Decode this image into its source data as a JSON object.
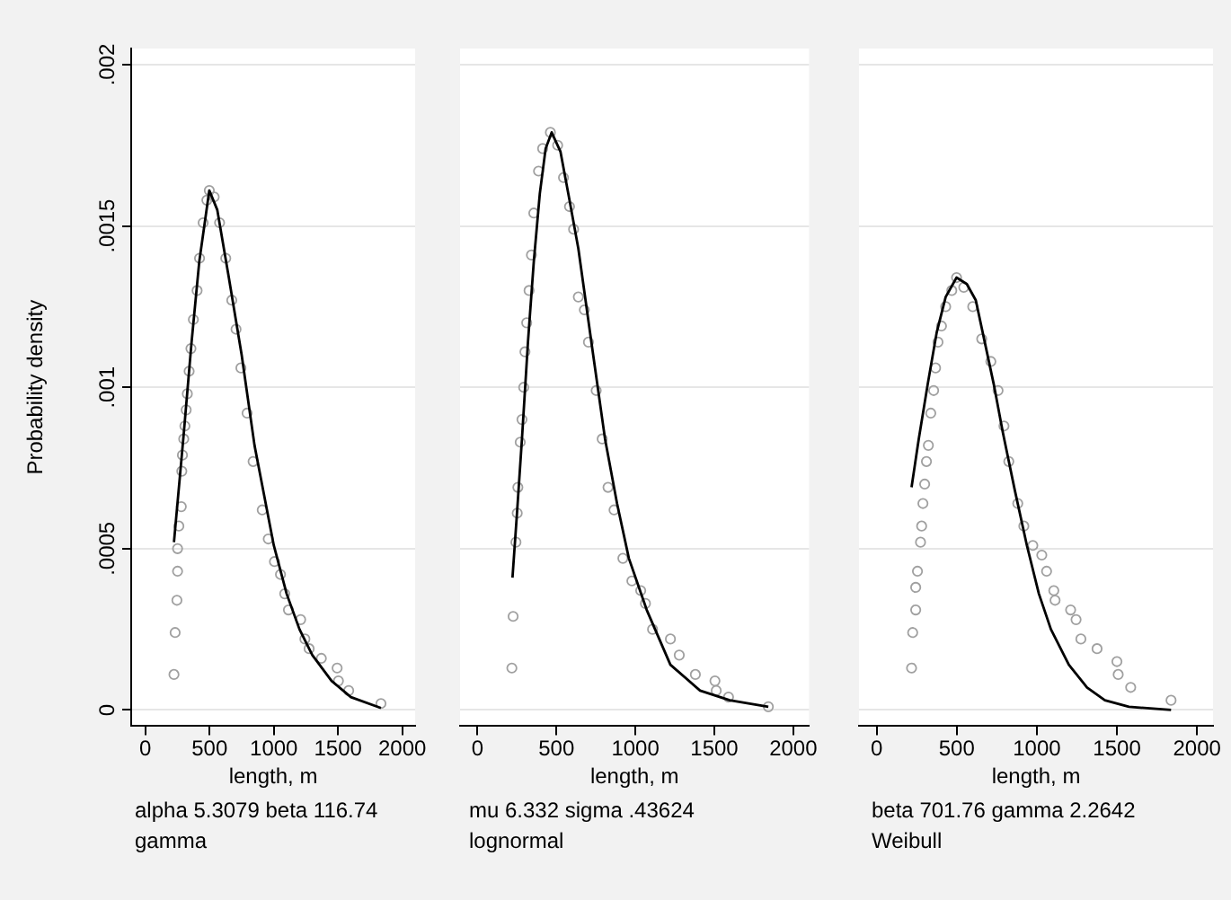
{
  "chart_data": [
    {
      "type": "scatter",
      "ylabel": "Probability density",
      "xlabel": "length, m",
      "annotations": [
        "alpha 5.3079 beta 116.74",
        "gamma"
      ],
      "xlim": [
        -110,
        2100
      ],
      "xticks": [
        0,
        500,
        1000,
        1500,
        2000
      ],
      "ylim": [
        -5e-05,
        0.00205
      ],
      "yticks": [
        0,
        {
          "value": 0.0005,
          "label": ".0005"
        },
        {
          "value": 0.001,
          "label": ".001"
        },
        {
          "value": 0.0015,
          "label": ".0015"
        },
        {
          "value": 0.002,
          "label": ".002"
        }
      ],
      "grid": "y",
      "legend": false,
      "series": [
        {
          "marker": "circle",
          "color": "#a0a0a0",
          "x": [
            223,
            232,
            246,
            251,
            251,
            261,
            280,
            284,
            289,
            299,
            308,
            318,
            327,
            341,
            355,
            374,
            403,
            422,
            450,
            479,
            498,
            536,
            578,
            626,
            673,
            706,
            744,
            792,
            839,
            910,
            957,
            1005,
            1052,
            1085,
            1114,
            1209,
            1242,
            1275,
            1370,
            1493,
            1503,
            1583,
            1834
          ],
          "values": [
            0.00011,
            0.00024,
            0.00034,
            0.00043,
            0.0005,
            0.00057,
            0.00063,
            0.00074,
            0.00079,
            0.00084,
            0.00088,
            0.00093,
            0.00098,
            0.00105,
            0.00112,
            0.00121,
            0.0013,
            0.0014,
            0.00151,
            0.00158,
            0.00161,
            0.00159,
            0.00151,
            0.0014,
            0.00127,
            0.00118,
            0.00106,
            0.00092,
            0.00077,
            0.00062,
            0.00053,
            0.00046,
            0.00042,
            0.00036,
            0.00031,
            0.00028,
            0.00022,
            0.00019,
            0.00016,
            0.00013,
            9e-05,
            6e-05,
            2e-05
          ]
        },
        {
          "type": "line",
          "marker": "none",
          "color": "#000000",
          "x": [
            223,
            300,
            360,
            420,
            498,
            560,
            650,
            750,
            850,
            1000,
            1100,
            1200,
            1300,
            1450,
            1600,
            1834
          ],
          "values": [
            0.00052,
            0.00086,
            0.00114,
            0.00139,
            0.00161,
            0.00155,
            0.00134,
            0.0011,
            0.00082,
            0.00051,
            0.00036,
            0.00025,
            0.00017,
            9e-05,
            4e-05,
            6e-06
          ]
        }
      ]
    },
    {
      "type": "scatter",
      "xlabel": "length, m",
      "annotations": [
        "mu 6.332 sigma .43624",
        "lognormal"
      ],
      "xlim": [
        -110,
        2100
      ],
      "xticks": [
        0,
        500,
        1000,
        1500,
        2000
      ],
      "ylim": [
        -5e-05,
        0.00205
      ],
      "yticks": [
        0,
        0.0005,
        0.001,
        0.0015,
        0.002
      ],
      "grid": "y",
      "legend": false,
      "tick_labels": "x",
      "series": [
        {
          "marker": "circle",
          "color": "#a0a0a0",
          "x": [
            218,
            226,
            244,
            252,
            256,
            271,
            282,
            293,
            301,
            312,
            327,
            342,
            357,
            387,
            413,
            462,
            508,
            545,
            583,
            609,
            639,
            677,
            703,
            752,
            790,
            827,
            865,
            921,
            978,
            1034,
            1064,
            1109,
            1222,
            1278,
            1380,
            1504,
            1512,
            1590,
            1842
          ],
          "values": [
            0.00013,
            0.00029,
            0.00052,
            0.00061,
            0.00069,
            0.00083,
            0.0009,
            0.001,
            0.00111,
            0.0012,
            0.0013,
            0.00141,
            0.00154,
            0.00167,
            0.00174,
            0.00179,
            0.00175,
            0.00165,
            0.00156,
            0.00149,
            0.00128,
            0.00124,
            0.00114,
            0.00099,
            0.00084,
            0.00069,
            0.00062,
            0.00047,
            0.0004,
            0.00037,
            0.00033,
            0.00025,
            0.00022,
            0.00017,
            0.00011,
            9e-05,
            6e-05,
            4e-05,
            1e-05
          ]
        },
        {
          "type": "line",
          "marker": "none",
          "color": "#000000",
          "x": [
            222,
            252,
            282,
            320,
            357,
            395,
            432,
            470,
            526,
            583,
            639,
            733,
            808,
            884,
            959,
            1072,
            1222,
            1410,
            1598,
            1842
          ],
          "values": [
            0.00041,
            0.00062,
            0.00084,
            0.00114,
            0.00139,
            0.0016,
            0.00174,
            0.00179,
            0.00173,
            0.00158,
            0.00143,
            0.0011,
            0.00084,
            0.00064,
            0.00047,
            0.00031,
            0.00014,
            6e-05,
            3e-05,
            1e-05
          ]
        }
      ]
    },
    {
      "type": "scatter",
      "xlabel": "length, m",
      "annotations": [
        "beta 701.76 gamma 2.2642",
        "Weibull"
      ],
      "xlim": [
        -110,
        2100
      ],
      "xticks": [
        0,
        500,
        1000,
        1500,
        2000
      ],
      "ylim": [
        -5e-05,
        0.00205
      ],
      "yticks": [
        0,
        0.0005,
        0.001,
        0.0015,
        0.002
      ],
      "grid": "y",
      "legend": false,
      "tick_labels": "x",
      "series": [
        {
          "marker": "circle",
          "color": "#a0a0a0",
          "x": [
            218,
            225,
            244,
            244,
            255,
            274,
            281,
            289,
            300,
            311,
            323,
            338,
            356,
            368,
            383,
            405,
            431,
            469,
            499,
            544,
            600,
            656,
            713,
            758,
            795,
            825,
            881,
            919,
            975,
            1031,
            1061,
            1106,
            1114,
            1211,
            1245,
            1275,
            1376,
            1500,
            1508,
            1586,
            1838
          ],
          "values": [
            0.00013,
            0.00024,
            0.00031,
            0.00038,
            0.00043,
            0.00052,
            0.00057,
            0.00064,
            0.0007,
            0.00077,
            0.00082,
            0.00092,
            0.00099,
            0.00106,
            0.00114,
            0.00119,
            0.00125,
            0.0013,
            0.00134,
            0.00131,
            0.00125,
            0.00115,
            0.00108,
            0.00099,
            0.00088,
            0.00077,
            0.00064,
            0.00057,
            0.00051,
            0.00048,
            0.00043,
            0.00037,
            0.00034,
            0.00031,
            0.00028,
            0.00022,
            0.00019,
            0.00015,
            0.00011,
            7e-05,
            3e-05
          ]
        },
        {
          "type": "line",
          "marker": "none",
          "color": "#000000",
          "x": [
            218,
            263,
            319,
            375,
            431,
            499,
            563,
            619,
            675,
            731,
            788,
            863,
            938,
            1013,
            1088,
            1200,
            1313,
            1425,
            1575,
            1838
          ],
          "values": [
            0.00069,
            0.00084,
            0.00101,
            0.00117,
            0.00128,
            0.00134,
            0.00132,
            0.00127,
            0.00114,
            0.00101,
            0.00086,
            0.00068,
            0.00051,
            0.00036,
            0.00025,
            0.00014,
            7e-05,
            3e-05,
            1e-05,
            0
          ]
        }
      ]
    }
  ]
}
